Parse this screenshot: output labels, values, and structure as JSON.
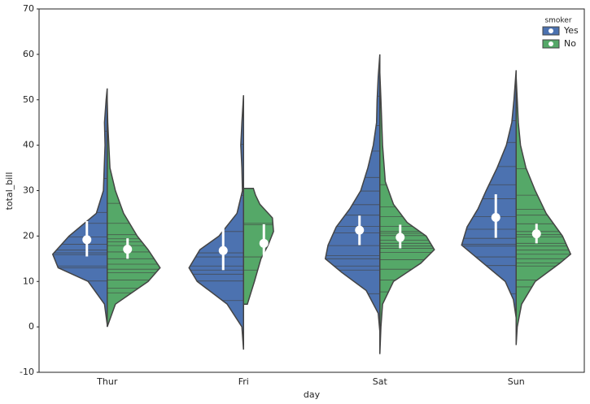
{
  "chart_data": {
    "type": "violin",
    "x_label": "day",
    "y_label": "total_bill",
    "categories": [
      "Thur",
      "Fri",
      "Sat",
      "Sun"
    ],
    "ylim": [
      -10,
      70
    ],
    "yticks": [
      -10,
      0,
      10,
      20,
      30,
      40,
      50,
      60,
      70
    ],
    "legend_title": "smoker",
    "legend_position": "upper right",
    "series": [
      {
        "name": "Yes",
        "color": "#4c72b0",
        "values": [
          19.2,
          16.8,
          21.3,
          24.1
        ],
        "ci": [
          [
            15.5,
            23.3
          ],
          [
            12.5,
            21.8
          ],
          [
            18,
            24.5
          ],
          [
            19.6,
            29.2
          ]
        ],
        "density": [
          {
            "y": [
              0.5,
              5,
              10,
              13,
              16,
              20,
              25,
              30,
              40,
              45,
              50,
              52.5
            ],
            "width": [
              0,
              0.05,
              0.35,
              0.9,
              1.0,
              0.7,
              0.2,
              0.07,
              0.04,
              0.05,
              0.02,
              0
            ]
          },
          {
            "y": [
              -5,
              0,
              5,
              10,
              13,
              17,
              20,
              25,
              30,
              35,
              40,
              45,
              51
            ],
            "width": [
              0,
              0.03,
              0.3,
              0.85,
              1.0,
              0.8,
              0.45,
              0.12,
              0.02,
              0.03,
              0.05,
              0.03,
              0
            ]
          },
          {
            "y": [
              -1,
              3,
              8,
              12,
              15,
              18,
              22,
              26,
              30,
              35,
              40,
              45,
              50,
              55,
              60
            ],
            "width": [
              0,
              0.03,
              0.25,
              0.7,
              1.0,
              0.95,
              0.8,
              0.55,
              0.35,
              0.22,
              0.12,
              0.06,
              0.05,
              0.03,
              0
            ]
          },
          {
            "y": [
              2,
              6,
              10,
              14,
              18,
              22,
              26,
              30,
              35,
              40,
              45,
              50,
              56.5
            ],
            "width": [
              0,
              0.05,
              0.2,
              0.6,
              1.0,
              0.9,
              0.7,
              0.55,
              0.35,
              0.18,
              0.08,
              0.04,
              0
            ]
          }
        ],
        "observations": [
          [
            10.1,
            13.0,
            13.4,
            15.9,
            16.3,
            16.9,
            18.2,
            19.8,
            22.8,
            25.2,
            32.7,
            43.1
          ],
          [
            5.8,
            10.1,
            11.6,
            12.5,
            13.4,
            15.4,
            16.3,
            21.0,
            28.9,
            40.2
          ],
          [
            7.3,
            12.5,
            13.4,
            15.0,
            15.7,
            17.9,
            20.7,
            22.1,
            24.6,
            26.9,
            29.9,
            32.9,
            38.7,
            44.3,
            50.8
          ],
          [
            7.3,
            13.5,
            15.4,
            17.8,
            18.2,
            19.5,
            21.5,
            24.3,
            28.2,
            31.3,
            35.3,
            40.6,
            45.4
          ]
        ]
      },
      {
        "name": "No",
        "color": "#55a868",
        "values": [
          17.1,
          18.4,
          19.7,
          20.5
        ],
        "ci": [
          [
            15,
            19.5
          ],
          [
            14,
            22.6
          ],
          [
            17.3,
            22.5
          ],
          [
            18.4,
            22.7
          ]
        ],
        "density": [
          {
            "y": [
              0,
              5,
              10,
              13,
              17,
              20,
              25,
              30,
              35,
              45,
              50
            ],
            "width": [
              0,
              0.15,
              0.75,
              0.97,
              0.75,
              0.55,
              0.3,
              0.15,
              0.05,
              0.01,
              0
            ]
          },
          {
            "y": [
              5,
              10,
              15,
              18,
              21,
              24,
              27,
              29,
              30.5
            ],
            "width": [
              0.07,
              0.2,
              0.32,
              0.45,
              0.55,
              0.53,
              0.3,
              0.22,
              0.18
            ]
          },
          {
            "y": [
              -6,
              0,
              5,
              10,
              14,
              17,
              20,
              23,
              27,
              32,
              40,
              50,
              56
            ],
            "width": [
              0,
              0.02,
              0.05,
              0.25,
              0.75,
              1.0,
              0.85,
              0.5,
              0.25,
              0.1,
              0.05,
              0.02,
              0
            ]
          },
          {
            "y": [
              -4,
              0,
              5,
              10,
              14,
              16,
              20,
              25,
              30,
              35,
              40,
              45,
              50,
              55
            ],
            "width": [
              0,
              0.02,
              0.1,
              0.35,
              0.8,
              1.0,
              0.85,
              0.55,
              0.35,
              0.18,
              0.08,
              0.04,
              0.02,
              0
            ]
          }
        ],
        "observations": [
          [
            7.5,
            8.5,
            10.3,
            11.9,
            12.7,
            13.8,
            15.0,
            16.5,
            17.9,
            18.7,
            19.4,
            20.3,
            22.8,
            27.2,
            41.2
          ],
          [
            15.4,
            22.8,
            22.5,
            12.5
          ],
          [
            7.7,
            10.3,
            12.7,
            14.8,
            16.4,
            17.3,
            17.8,
            18.4,
            19.1,
            20.1,
            20.6,
            21.0,
            22.1,
            24.3,
            26.4,
            31.3,
            48.3
          ],
          [
            8.8,
            10.3,
            13.4,
            14.1,
            15.0,
            16.0,
            16.9,
            17.8,
            18.4,
            19.8,
            20.3,
            21.0,
            22.7,
            24.6,
            25.9,
            29.0,
            34.8,
            48.2
          ]
        ]
      }
    ]
  }
}
